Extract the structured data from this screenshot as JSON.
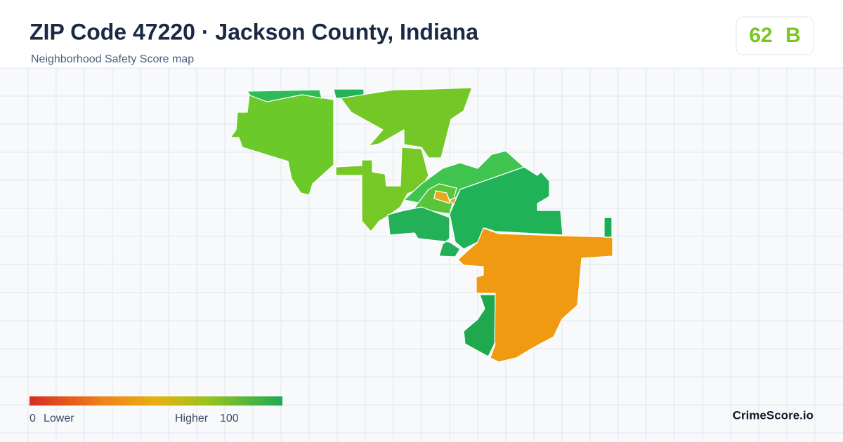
{
  "header": {
    "title": "ZIP Code 47220 · Jackson County, Indiana",
    "subtitle": "Neighborhood Safety Score map"
  },
  "score": {
    "value": "62",
    "grade": "B"
  },
  "legend": {
    "min": "0",
    "min_label": "Lower",
    "max_label": "Higher",
    "max": "100"
  },
  "brand": "CrimeScore.io"
}
